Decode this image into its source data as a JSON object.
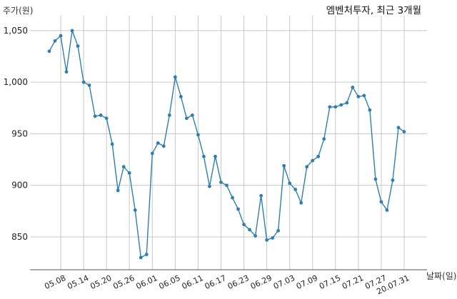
{
  "chart_data": {
    "type": "line",
    "title": "엠벤처투자, 최근 3개월",
    "xlabel": "날짜(일)",
    "ylabel": "주가(원)",
    "ylim": [
      815,
      1060
    ],
    "y_ticks": [
      850,
      900,
      950,
      1000,
      1050
    ],
    "y_tick_labels": [
      "850",
      "900",
      "950",
      "1,000",
      "1,050"
    ],
    "x_ticks": [
      "05.08",
      "05.14",
      "05.20",
      "05.26",
      "06.01",
      "06.05",
      "06.11",
      "06.17",
      "06.23",
      "06.29",
      "07.03",
      "07.09",
      "07.15",
      "07.21",
      "07.27",
      "20.07.31"
    ],
    "x_tick_index": [
      2,
      6,
      10,
      14,
      18,
      22,
      26,
      30,
      34,
      38,
      42,
      46,
      50,
      54,
      58,
      62
    ],
    "grid": true,
    "line_color": "#2e7fb0",
    "series": [
      {
        "values": [
          1030,
          1040,
          1045,
          1010,
          1050,
          1035,
          1000,
          997,
          967,
          968,
          965,
          940,
          895,
          918,
          912,
          876,
          830,
          833,
          931,
          941,
          938,
          968,
          1005,
          986,
          965,
          968,
          949,
          928,
          899,
          928,
          903,
          900,
          888,
          877,
          862,
          857,
          851,
          890,
          847,
          849,
          856,
          919,
          902,
          896,
          883,
          918,
          924,
          928,
          945,
          976,
          976,
          978,
          980,
          995,
          986,
          987,
          973,
          906,
          884,
          876,
          905,
          956,
          952
        ]
      }
    ]
  }
}
